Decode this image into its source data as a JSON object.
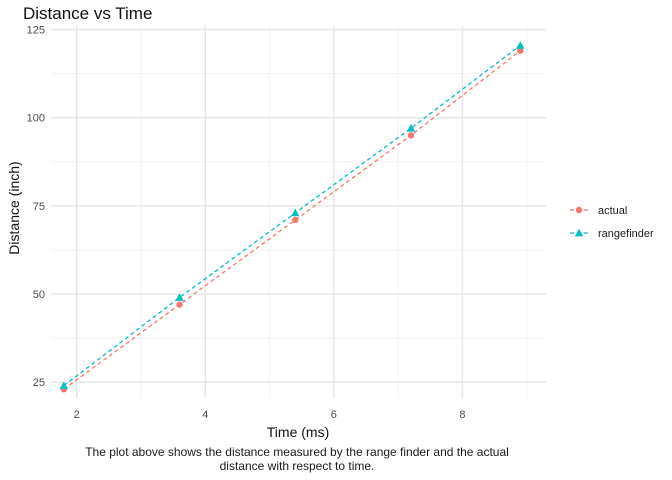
{
  "chart_data": {
    "type": "line",
    "title": "Distance vs Time",
    "xlabel": "Time (ms)",
    "ylabel": "Distance (inch)",
    "xlim": [
      1.6,
      9.3
    ],
    "ylim": [
      20.5,
      126
    ],
    "x_ticks": [
      2,
      4,
      6,
      8
    ],
    "x_tick_labels": [
      "2",
      "4",
      "6",
      "8"
    ],
    "y_ticks": [
      25,
      50,
      75,
      100,
      125
    ],
    "y_tick_labels": [
      "25",
      "50",
      "75",
      "100",
      "125"
    ],
    "x_minor_ticks": [
      3,
      5,
      7,
      9
    ],
    "y_minor_ticks": [
      37.5,
      62.5,
      87.5,
      112.5
    ],
    "grid": true,
    "legend_position": "right",
    "series": [
      {
        "name": "actual",
        "marker": "circle",
        "line_style": "dashed",
        "color": "#F8766D",
        "x": [
          1.8,
          3.6,
          5.4,
          7.2,
          8.9
        ],
        "values": [
          23,
          47,
          71,
          95,
          119
        ]
      },
      {
        "name": "rangefinder",
        "marker": "triangle",
        "line_style": "dashed",
        "color": "#00BFC4",
        "x": [
          1.8,
          3.6,
          5.4,
          7.2,
          8.9
        ],
        "values": [
          24,
          49,
          73,
          97,
          120.5
        ]
      }
    ]
  },
  "caption": {
    "line1": "The plot above shows the distance measured by the range finder and the actual",
    "line2": "distance with respect to time."
  }
}
